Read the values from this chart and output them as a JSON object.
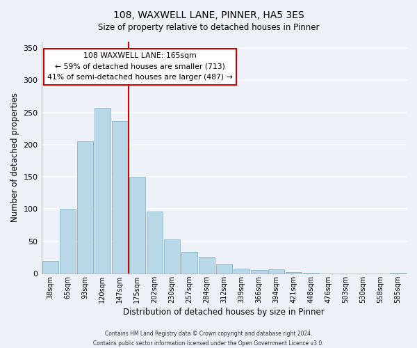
{
  "title": "108, WAXWELL LANE, PINNER, HA5 3ES",
  "subtitle": "Size of property relative to detached houses in Pinner",
  "xlabel": "Distribution of detached houses by size in Pinner",
  "ylabel": "Number of detached properties",
  "bar_labels": [
    "38sqm",
    "65sqm",
    "93sqm",
    "120sqm",
    "147sqm",
    "175sqm",
    "202sqm",
    "230sqm",
    "257sqm",
    "284sqm",
    "312sqm",
    "339sqm",
    "366sqm",
    "394sqm",
    "421sqm",
    "448sqm",
    "476sqm",
    "503sqm",
    "530sqm",
    "558sqm",
    "585sqm"
  ],
  "bar_heights": [
    19,
    100,
    205,
    257,
    237,
    150,
    96,
    53,
    33,
    26,
    15,
    7,
    5,
    6,
    2,
    1,
    0,
    0,
    0,
    0,
    1
  ],
  "bar_color": "#b8d8e8",
  "bar_edge_color": "#8ab8cc",
  "vline_x_index": 5,
  "vline_color": "#cc0000",
  "ylim": [
    0,
    360
  ],
  "yticks": [
    0,
    50,
    100,
    150,
    200,
    250,
    300,
    350
  ],
  "annotation_text_line1": "108 WAXWELL LANE: 165sqm",
  "annotation_text_line2": "← 59% of detached houses are smaller (713)",
  "annotation_text_line3": "41% of semi-detached houses are larger (487) →",
  "footer_line1": "Contains HM Land Registry data © Crown copyright and database right 2024.",
  "footer_line2": "Contains public sector information licensed under the Open Government Licence v3.0.",
  "background_color": "#eef2f8",
  "grid_color": "#ffffff"
}
